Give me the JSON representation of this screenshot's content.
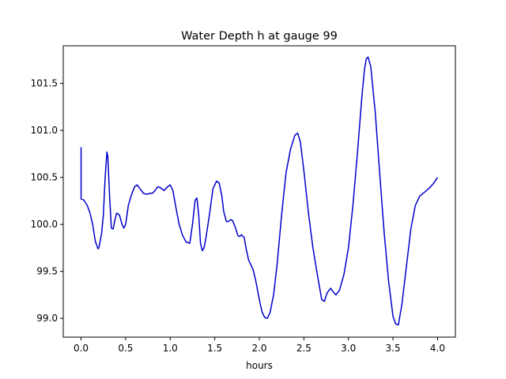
{
  "chart_data": {
    "type": "line",
    "title": "Water Depth h at gauge 99",
    "xlabel": "hours",
    "ylabel": "",
    "xlim": [
      -0.2,
      4.2
    ],
    "ylim": [
      98.8,
      101.9
    ],
    "xticks": [
      0.0,
      0.5,
      1.0,
      1.5,
      2.0,
      2.5,
      3.0,
      3.5,
      4.0
    ],
    "xtick_labels": [
      "0.0",
      "0.5",
      "1.0",
      "1.5",
      "2.0",
      "2.5",
      "3.0",
      "3.5",
      "4.0"
    ],
    "yticks": [
      99.0,
      99.5,
      100.0,
      100.5,
      101.0,
      101.5
    ],
    "ytick_labels": [
      "99.0",
      "99.5",
      "100.0",
      "100.5",
      "101.0",
      "101.5"
    ],
    "grid": false,
    "legend": "none",
    "series": [
      {
        "color": "#0000cc",
        "x": [
          0.0,
          0.0,
          0.0,
          0.03,
          0.07,
          0.1,
          0.13,
          0.16,
          0.19,
          0.2,
          0.23,
          0.25,
          0.27,
          0.29,
          0.3,
          0.32,
          0.34,
          0.36,
          0.38,
          0.4,
          0.43,
          0.46,
          0.48,
          0.5,
          0.53,
          0.56,
          0.6,
          0.63,
          0.66,
          0.7,
          0.74,
          0.77,
          0.8,
          0.83,
          0.86,
          0.89,
          0.93,
          0.97,
          1.0,
          1.03,
          1.06,
          1.1,
          1.14,
          1.18,
          1.22,
          1.25,
          1.28,
          1.3,
          1.32,
          1.34,
          1.36,
          1.38,
          1.4,
          1.44,
          1.48,
          1.52,
          1.55,
          1.58,
          1.6,
          1.63,
          1.65,
          1.68,
          1.7,
          1.73,
          1.76,
          1.78,
          1.8,
          1.83,
          1.85,
          1.88,
          1.9,
          1.93,
          1.96,
          2.0,
          2.03,
          2.06,
          2.09,
          2.12,
          2.16,
          2.2,
          2.25,
          2.3,
          2.35,
          2.4,
          2.43,
          2.46,
          2.5,
          2.55,
          2.6,
          2.65,
          2.7,
          2.73,
          2.76,
          2.8,
          2.83,
          2.86,
          2.9,
          2.95,
          3.0,
          3.05,
          3.1,
          3.15,
          3.18,
          3.2,
          3.22,
          3.25,
          3.3,
          3.35,
          3.4,
          3.45,
          3.5,
          3.53,
          3.56,
          3.6,
          3.65,
          3.7,
          3.75,
          3.8,
          3.85,
          3.9,
          3.95,
          4.0
        ],
        "y": [
          100.82,
          100.56,
          100.27,
          100.26,
          100.2,
          100.12,
          100.0,
          99.82,
          99.74,
          99.75,
          99.9,
          100.1,
          100.5,
          100.77,
          100.72,
          100.3,
          99.96,
          99.95,
          100.05,
          100.12,
          100.1,
          100.0,
          99.96,
          100.0,
          100.2,
          100.3,
          100.4,
          100.42,
          100.38,
          100.33,
          100.32,
          100.33,
          100.33,
          100.36,
          100.4,
          100.39,
          100.36,
          100.4,
          100.42,
          100.36,
          100.2,
          100.0,
          99.88,
          99.81,
          99.8,
          100.0,
          100.26,
          100.28,
          100.1,
          99.8,
          99.72,
          99.75,
          99.85,
          100.1,
          100.38,
          100.46,
          100.44,
          100.3,
          100.14,
          100.03,
          100.03,
          100.05,
          100.04,
          99.97,
          99.88,
          99.87,
          99.89,
          99.86,
          99.75,
          99.62,
          99.58,
          99.52,
          99.4,
          99.2,
          99.07,
          99.01,
          99.0,
          99.06,
          99.25,
          99.58,
          100.1,
          100.55,
          100.8,
          100.95,
          100.97,
          100.88,
          100.57,
          100.13,
          99.76,
          99.47,
          99.2,
          99.18,
          99.27,
          99.32,
          99.28,
          99.25,
          99.3,
          99.47,
          99.75,
          100.2,
          100.75,
          101.35,
          101.65,
          101.76,
          101.78,
          101.68,
          101.2,
          100.55,
          99.92,
          99.4,
          99.02,
          98.94,
          98.93,
          99.15,
          99.55,
          99.95,
          100.2,
          100.3,
          100.34,
          100.38,
          100.43,
          100.5
        ]
      }
    ]
  }
}
